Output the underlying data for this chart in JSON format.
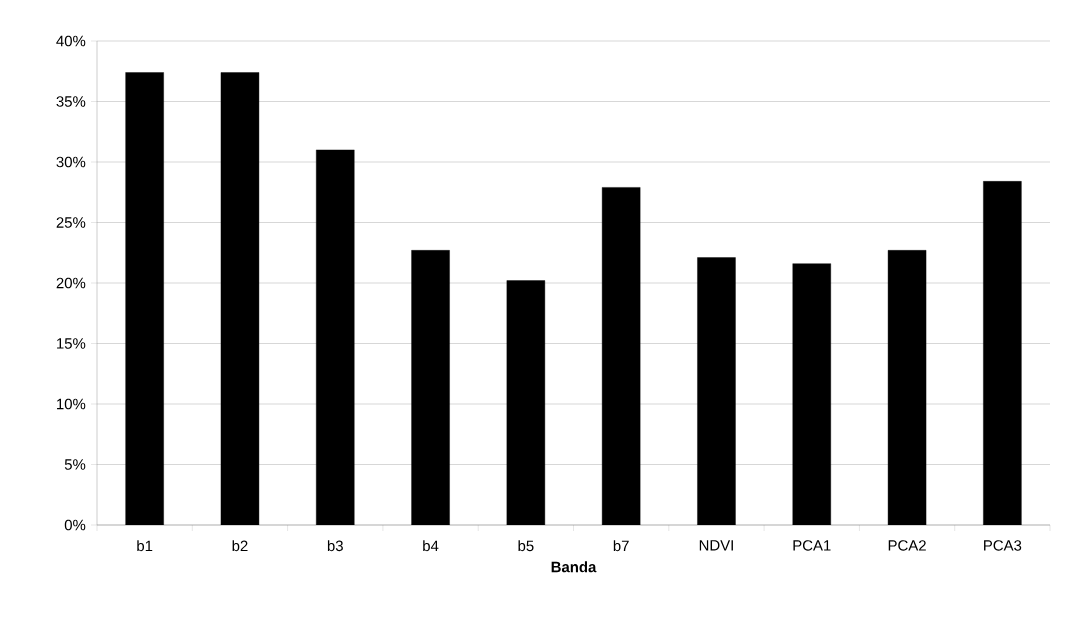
{
  "chart_data": {
    "type": "bar",
    "xlabel": "Banda",
    "categories": [
      "b1",
      "b2",
      "b3",
      "b4",
      "b5",
      "b7",
      "NDVI",
      "PCA1",
      "PCA2",
      "PCA3"
    ],
    "values": [
      37.4,
      37.4,
      31.0,
      22.7,
      20.2,
      27.9,
      22.1,
      21.6,
      22.7,
      28.4
    ],
    "color": "#000000",
    "ylim": [
      0,
      40
    ],
    "yticks": [
      {
        "value": 0,
        "label": "0%"
      },
      {
        "value": 5,
        "label": "5%"
      },
      {
        "value": 10,
        "label": "10%"
      },
      {
        "value": 15,
        "label": "15%"
      },
      {
        "value": 20,
        "label": "20%"
      },
      {
        "value": 25,
        "label": "25%"
      },
      {
        "value": 30,
        "label": "30%"
      },
      {
        "value": 35,
        "label": "35%"
      },
      {
        "value": 40,
        "label": "40%"
      }
    ],
    "grid": "y"
  }
}
